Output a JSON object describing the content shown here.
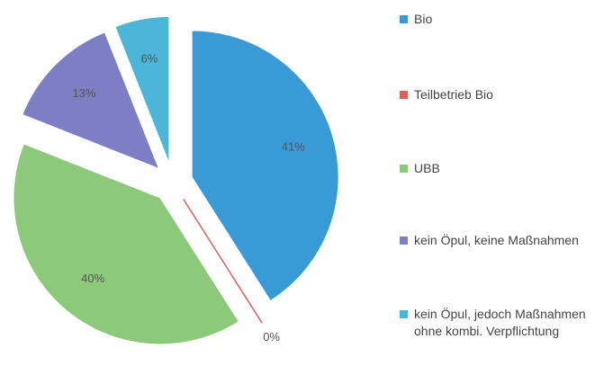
{
  "chart_data": {
    "type": "pie",
    "categories": [
      "Bio",
      "Teilbetrieb Bio",
      "UBB",
      "kein Öpul, keine Maßnahmen",
      "kein Öpul, jedoch Maßnahmen ohne kombi. Verpflichtung"
    ],
    "values": [
      41,
      0,
      40,
      13,
      6
    ],
    "value_labels": [
      "41%",
      "0%",
      "40%",
      "13%",
      "6%"
    ],
    "colors": [
      "#3a9ad6",
      "#d9625e",
      "#8cc97a",
      "#7c7fc3",
      "#4bb6d8"
    ]
  }
}
